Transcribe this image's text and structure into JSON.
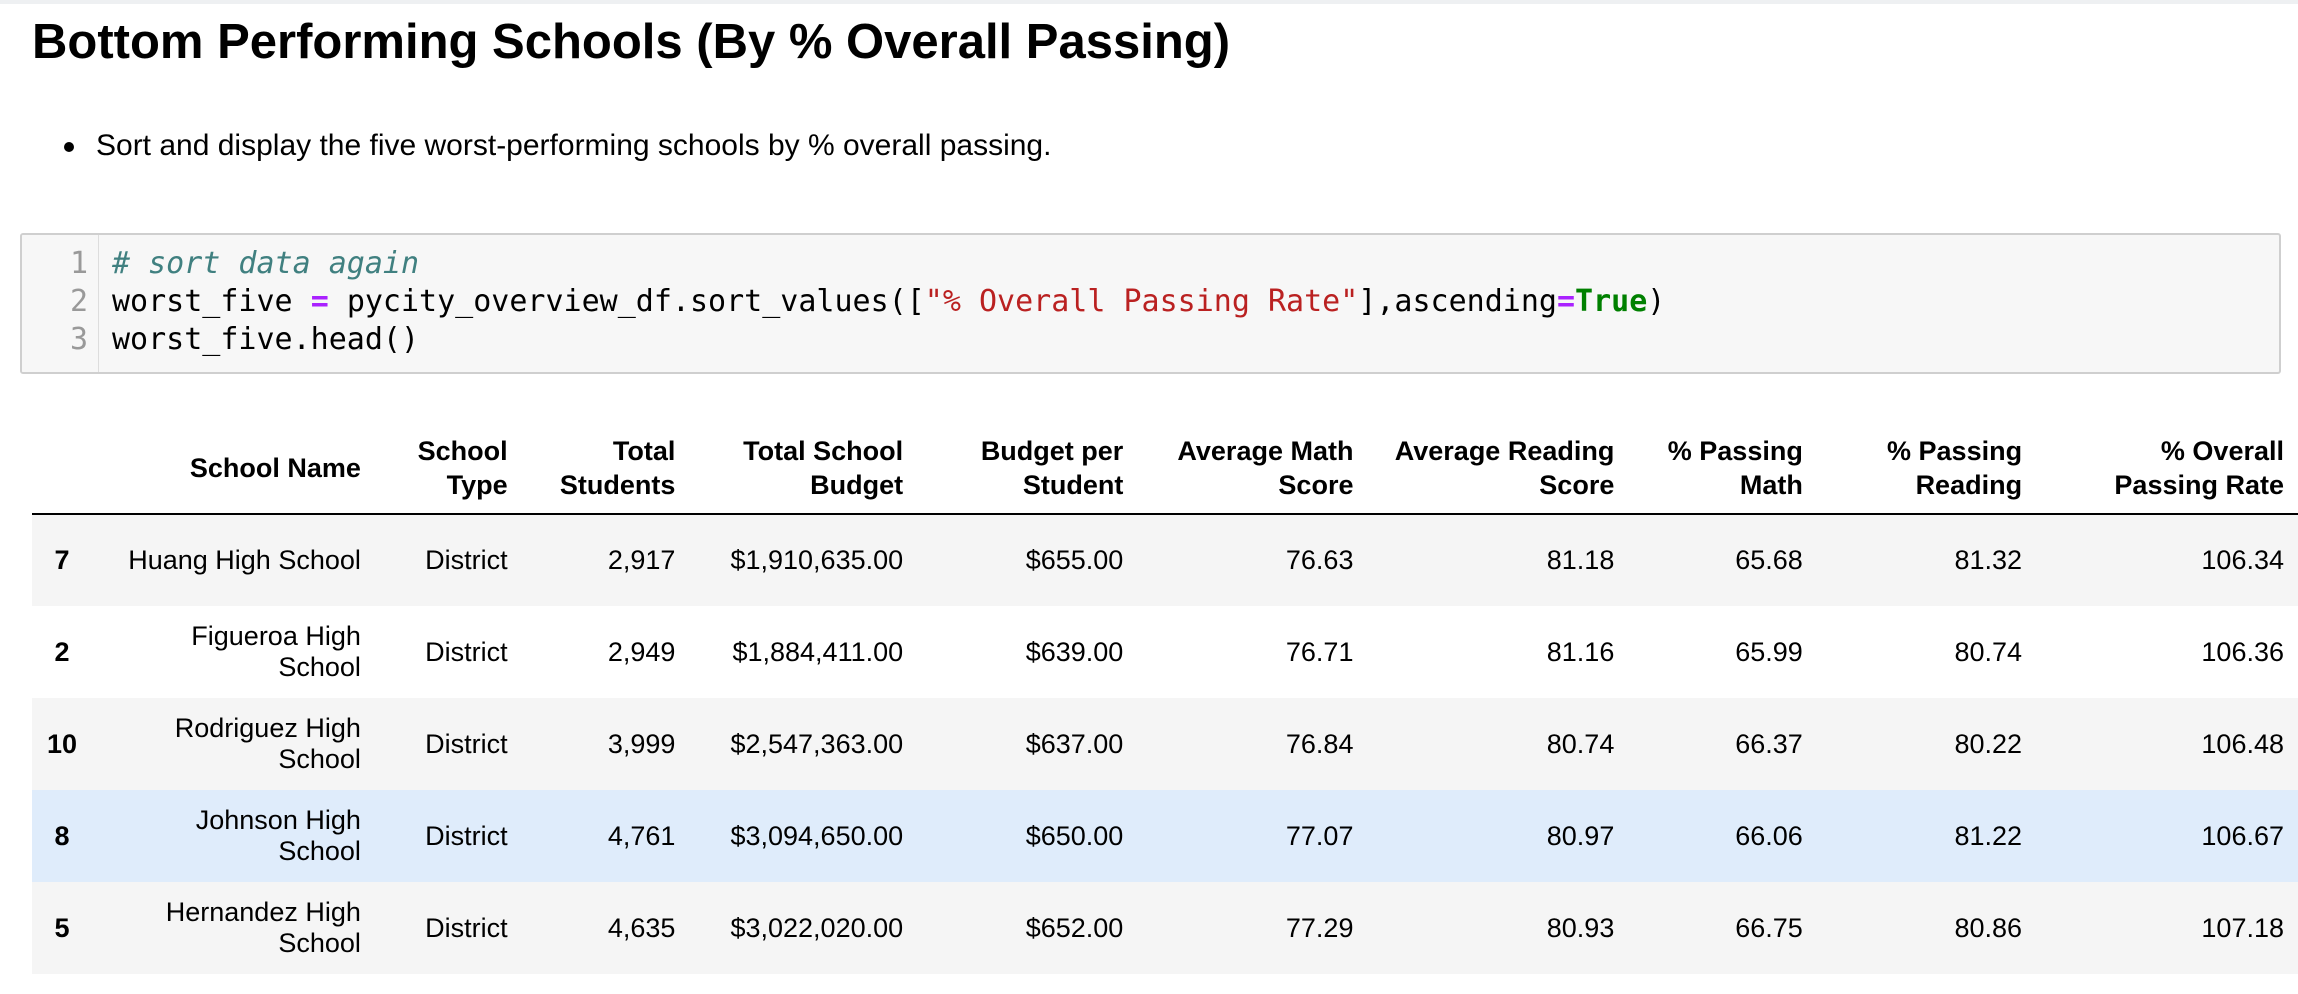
{
  "heading": "Bottom Performing Schools (By % Overall Passing)",
  "bullets": [
    "Sort and display the five worst-performing schools by % overall passing."
  ],
  "code_cell": {
    "line_numbers": [
      "1",
      "2",
      "3"
    ],
    "line1": "# sort data again",
    "line2_var": "worst_five",
    "line2_eq": "=",
    "line2_call": "pycity_overview_df.sort_values([",
    "line2_str": "\"% Overall Passing Rate\"",
    "line2_mid": "],ascending",
    "line2_eq2": "=",
    "line2_kw": "True",
    "line2_end": ")",
    "line3": "worst_five.head()"
  },
  "table": {
    "columns": [
      "",
      "School Name",
      "School Type",
      "Total Students",
      "Total School Budget",
      "Budget per Student",
      "Average Math Score",
      "Average Reading Score",
      "% Passing Math",
      "% Passing Reading",
      "% Overall Passing Rate"
    ],
    "rows": [
      [
        "7",
        "Huang High School",
        "District",
        "2,917",
        "$1,910,635.00",
        "$655.00",
        "76.63",
        "81.18",
        "65.68",
        "81.32",
        "106.34"
      ],
      [
        "2",
        "Figueroa High School",
        "District",
        "2,949",
        "$1,884,411.00",
        "$639.00",
        "76.71",
        "81.16",
        "65.99",
        "80.74",
        "106.36"
      ],
      [
        "10",
        "Rodriguez High School",
        "District",
        "3,999",
        "$2,547,363.00",
        "$637.00",
        "76.84",
        "80.74",
        "66.37",
        "80.22",
        "106.48"
      ],
      [
        "8",
        "Johnson High School",
        "District",
        "4,761",
        "$3,094,650.00",
        "$650.00",
        "77.07",
        "80.97",
        "66.06",
        "81.22",
        "106.67"
      ],
      [
        "5",
        "Hernandez High School",
        "District",
        "4,635",
        "$3,022,020.00",
        "$652.00",
        "77.29",
        "80.93",
        "66.75",
        "80.86",
        "107.18"
      ]
    ]
  },
  "colors": {
    "row_odd": "#f5f5f5",
    "row_even": "#ffffff",
    "row_hover": "#dfecfb",
    "code_bg": "#f7f7f7",
    "comment": "#408080",
    "operator": "#aa22ff",
    "string": "#ba2121",
    "keyword": "#008000"
  }
}
